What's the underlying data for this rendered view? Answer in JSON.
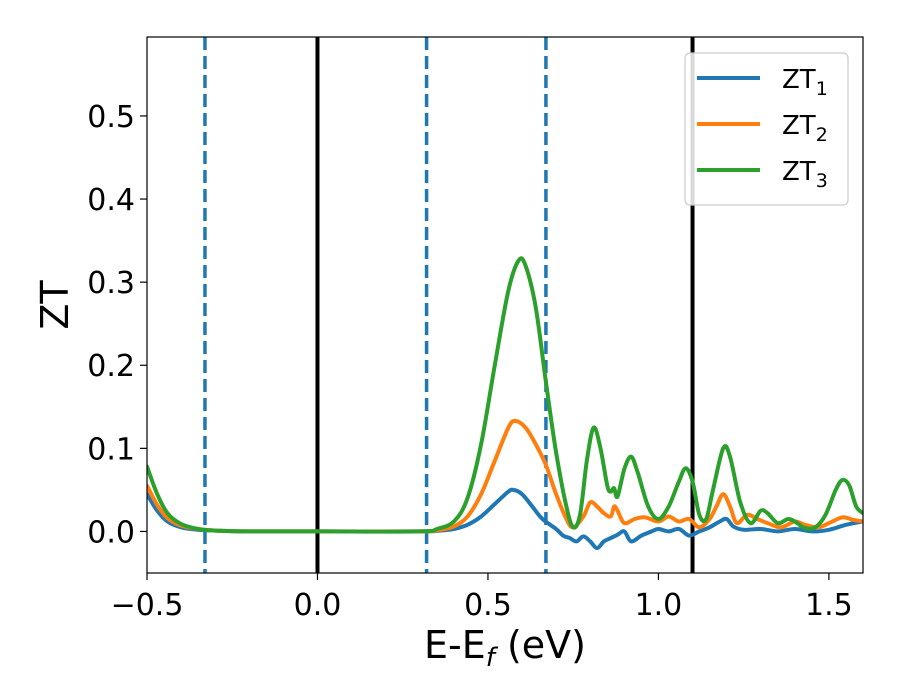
{
  "chart_data": {
    "type": "line",
    "xlabel": "E-E",
    "xlabel_sub": "f",
    "xlabel_unit": " (eV)",
    "ylabel": "ZT",
    "xlim": [
      -0.5,
      1.6
    ],
    "ylim": [
      -0.05,
      0.595
    ],
    "xticks": [
      {
        "value": -0.5,
        "label": "−0.5"
      },
      {
        "value": 0.0,
        "label": "0.0"
      },
      {
        "value": 0.5,
        "label": "0.5"
      },
      {
        "value": 1.0,
        "label": "1.0"
      },
      {
        "value": 1.5,
        "label": "1.5"
      }
    ],
    "yticks": [
      {
        "value": 0.0,
        "label": "0.0"
      },
      {
        "value": 0.1,
        "label": "0.1"
      },
      {
        "value": 0.2,
        "label": "0.2"
      },
      {
        "value": 0.3,
        "label": "0.3"
      },
      {
        "value": 0.4,
        "label": "0.4"
      },
      {
        "value": 0.5,
        "label": "0.5"
      }
    ],
    "grid": false,
    "legend_position": "top-right",
    "vlines": [
      {
        "x": -0.33,
        "style": "dashed",
        "color": "#1f77b4"
      },
      {
        "x": 0.0,
        "style": "solid",
        "color": "#000000"
      },
      {
        "x": 0.32,
        "style": "dashed",
        "color": "#1f77b4"
      },
      {
        "x": 0.67,
        "style": "dashed",
        "color": "#1f77b4"
      },
      {
        "x": 1.1,
        "style": "solid",
        "color": "#000000"
      }
    ],
    "series": [
      {
        "name": "ZT",
        "name_sub": "1",
        "color": "#1f77b4",
        "points": [
          [
            -0.5,
            0.045
          ],
          [
            -0.47,
            0.025
          ],
          [
            -0.44,
            0.012
          ],
          [
            -0.4,
            0.005
          ],
          [
            -0.35,
            0.002
          ],
          [
            -0.3,
            0.001
          ],
          [
            -0.2,
            0.0
          ],
          [
            0.0,
            0.0
          ],
          [
            0.3,
            0.0
          ],
          [
            0.36,
            0.001
          ],
          [
            0.4,
            0.003
          ],
          [
            0.44,
            0.008
          ],
          [
            0.48,
            0.018
          ],
          [
            0.52,
            0.033
          ],
          [
            0.56,
            0.048
          ],
          [
            0.575,
            0.05
          ],
          [
            0.6,
            0.045
          ],
          [
            0.63,
            0.03
          ],
          [
            0.66,
            0.015
          ],
          [
            0.7,
            0.003
          ],
          [
            0.72,
            -0.005
          ],
          [
            0.74,
            -0.008
          ],
          [
            0.76,
            -0.012
          ],
          [
            0.78,
            -0.006
          ],
          [
            0.8,
            -0.012
          ],
          [
            0.82,
            -0.02
          ],
          [
            0.84,
            -0.012
          ],
          [
            0.86,
            -0.008
          ],
          [
            0.88,
            -0.004
          ],
          [
            0.9,
            0.0
          ],
          [
            0.92,
            -0.012
          ],
          [
            0.95,
            -0.005
          ],
          [
            0.98,
            0.0
          ],
          [
            1.0,
            0.003
          ],
          [
            1.03,
            0.0
          ],
          [
            1.06,
            0.003
          ],
          [
            1.09,
            -0.005
          ],
          [
            1.12,
            0.0
          ],
          [
            1.15,
            0.005
          ],
          [
            1.18,
            0.012
          ],
          [
            1.2,
            0.015
          ],
          [
            1.22,
            0.006
          ],
          [
            1.25,
            0.002
          ],
          [
            1.3,
            0.003
          ],
          [
            1.35,
            0.0
          ],
          [
            1.4,
            0.003
          ],
          [
            1.45,
            0.0
          ],
          [
            1.5,
            0.002
          ],
          [
            1.55,
            0.008
          ],
          [
            1.6,
            0.012
          ]
        ]
      },
      {
        "name": "ZT",
        "name_sub": "2",
        "color": "#ff7f0e",
        "points": [
          [
            -0.5,
            0.055
          ],
          [
            -0.47,
            0.032
          ],
          [
            -0.44,
            0.016
          ],
          [
            -0.4,
            0.007
          ],
          [
            -0.35,
            0.003
          ],
          [
            -0.3,
            0.001
          ],
          [
            -0.2,
            0.0
          ],
          [
            0.0,
            0.0
          ],
          [
            0.3,
            0.0
          ],
          [
            0.36,
            0.002
          ],
          [
            0.4,
            0.006
          ],
          [
            0.44,
            0.018
          ],
          [
            0.48,
            0.045
          ],
          [
            0.52,
            0.085
          ],
          [
            0.56,
            0.125
          ],
          [
            0.58,
            0.133
          ],
          [
            0.61,
            0.125
          ],
          [
            0.64,
            0.105
          ],
          [
            0.67,
            0.08
          ],
          [
            0.7,
            0.045
          ],
          [
            0.73,
            0.015
          ],
          [
            0.75,
            0.005
          ],
          [
            0.78,
            0.018
          ],
          [
            0.8,
            0.035
          ],
          [
            0.82,
            0.03
          ],
          [
            0.84,
            0.022
          ],
          [
            0.86,
            0.018
          ],
          [
            0.87,
            0.03
          ],
          [
            0.88,
            0.025
          ],
          [
            0.9,
            0.01
          ],
          [
            0.93,
            0.015
          ],
          [
            0.96,
            0.017
          ],
          [
            1.0,
            0.012
          ],
          [
            1.03,
            0.018
          ],
          [
            1.06,
            0.012
          ],
          [
            1.09,
            0.015
          ],
          [
            1.12,
            0.005
          ],
          [
            1.15,
            0.015
          ],
          [
            1.17,
            0.03
          ],
          [
            1.19,
            0.045
          ],
          [
            1.21,
            0.03
          ],
          [
            1.23,
            0.01
          ],
          [
            1.26,
            0.02
          ],
          [
            1.29,
            0.015
          ],
          [
            1.32,
            0.01
          ],
          [
            1.36,
            0.005
          ],
          [
            1.4,
            0.012
          ],
          [
            1.43,
            0.008
          ],
          [
            1.47,
            0.005
          ],
          [
            1.5,
            0.01
          ],
          [
            1.54,
            0.017
          ],
          [
            1.57,
            0.014
          ],
          [
            1.6,
            0.012
          ]
        ]
      },
      {
        "name": "ZT",
        "name_sub": "3",
        "color": "#2ca02c",
        "points": [
          [
            -0.5,
            0.078
          ],
          [
            -0.47,
            0.045
          ],
          [
            -0.44,
            0.022
          ],
          [
            -0.4,
            0.009
          ],
          [
            -0.35,
            0.003
          ],
          [
            -0.3,
            0.001
          ],
          [
            -0.2,
            0.0
          ],
          [
            0.0,
            0.0
          ],
          [
            0.3,
            0.0
          ],
          [
            0.35,
            0.003
          ],
          [
            0.4,
            0.012
          ],
          [
            0.44,
            0.04
          ],
          [
            0.48,
            0.105
          ],
          [
            0.52,
            0.2
          ],
          [
            0.56,
            0.29
          ],
          [
            0.59,
            0.326
          ],
          [
            0.61,
            0.32
          ],
          [
            0.64,
            0.27
          ],
          [
            0.67,
            0.18
          ],
          [
            0.7,
            0.095
          ],
          [
            0.73,
            0.03
          ],
          [
            0.75,
            0.005
          ],
          [
            0.77,
            0.02
          ],
          [
            0.79,
            0.085
          ],
          [
            0.81,
            0.125
          ],
          [
            0.83,
            0.1
          ],
          [
            0.85,
            0.055
          ],
          [
            0.86,
            0.048
          ],
          [
            0.87,
            0.052
          ],
          [
            0.88,
            0.042
          ],
          [
            0.9,
            0.075
          ],
          [
            0.92,
            0.09
          ],
          [
            0.94,
            0.07
          ],
          [
            0.97,
            0.03
          ],
          [
            1.0,
            0.015
          ],
          [
            1.03,
            0.03
          ],
          [
            1.06,
            0.06
          ],
          [
            1.08,
            0.076
          ],
          [
            1.1,
            0.06
          ],
          [
            1.12,
            0.02
          ],
          [
            1.14,
            0.015
          ],
          [
            1.16,
            0.05
          ],
          [
            1.19,
            0.1
          ],
          [
            1.21,
            0.09
          ],
          [
            1.24,
            0.035
          ],
          [
            1.27,
            0.01
          ],
          [
            1.3,
            0.025
          ],
          [
            1.32,
            0.022
          ],
          [
            1.35,
            0.01
          ],
          [
            1.38,
            0.015
          ],
          [
            1.4,
            0.012
          ],
          [
            1.43,
            0.004
          ],
          [
            1.46,
            0.005
          ],
          [
            1.49,
            0.02
          ],
          [
            1.52,
            0.05
          ],
          [
            1.54,
            0.062
          ],
          [
            1.56,
            0.055
          ],
          [
            1.58,
            0.03
          ],
          [
            1.6,
            0.022
          ]
        ]
      }
    ]
  }
}
